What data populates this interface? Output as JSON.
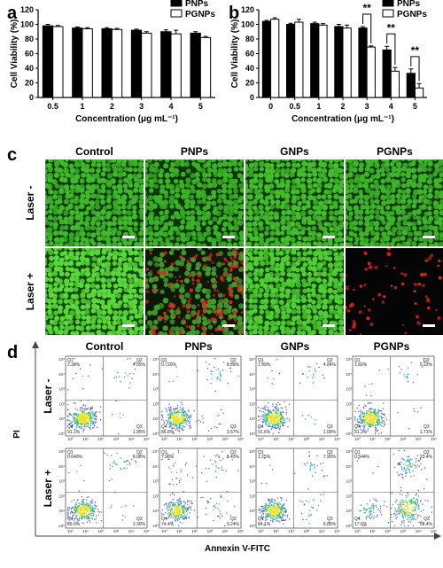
{
  "panels": {
    "a": "a",
    "b": "b",
    "c": "c",
    "d": "d"
  },
  "chart_data": [
    {
      "id": "a",
      "type": "bar",
      "categories": [
        "0.5",
        "1",
        "2",
        "3",
        "4",
        "5"
      ],
      "series": [
        {
          "name": "PNPs",
          "values": [
            98,
            95,
            94,
            92,
            90,
            88
          ],
          "errors": [
            2,
            1.5,
            1.5,
            1.5,
            2.5,
            2
          ],
          "color": "#000000"
        },
        {
          "name": "PGNPs",
          "values": [
            97,
            94,
            93,
            88,
            87,
            82
          ],
          "errors": [
            1.5,
            1.5,
            1.5,
            2,
            5,
            1.5
          ],
          "color": "#ffffff"
        }
      ],
      "xlabel": "Concentration (μg mL⁻¹)",
      "ylabel": "Cell Viability (%)",
      "ylim": [
        0,
        120
      ],
      "yticks": [
        "0",
        "20",
        "40",
        "60",
        "80",
        "100",
        "120"
      ],
      "legend": "top-right"
    },
    {
      "id": "b",
      "type": "bar",
      "categories": [
        "0",
        "0.5",
        "1",
        "2",
        "3",
        "4",
        "5"
      ],
      "series": [
        {
          "name": "PNPs",
          "values": [
            104,
            100,
            101,
            97,
            95,
            65,
            33
          ],
          "errors": [
            1.5,
            1.5,
            2,
            3,
            2,
            5,
            6
          ],
          "color": "#000000"
        },
        {
          "name": "PGNPs",
          "values": [
            107,
            103,
            99,
            95,
            69,
            36,
            13
          ],
          "errors": [
            2,
            4,
            2,
            4,
            1.5,
            5,
            6
          ],
          "color": "#ffffff"
        }
      ],
      "significance": [
        {
          "category": "3",
          "label": "**"
        },
        {
          "category": "4",
          "label": "**"
        },
        {
          "category": "5",
          "label": "**"
        }
      ],
      "xlabel": "Concentration (μg mL⁻¹)",
      "ylabel": "Cell Viability (%)",
      "ylim": [
        0,
        120
      ],
      "yticks": [
        "0",
        "20",
        "40",
        "60",
        "80",
        "100",
        "120"
      ],
      "legend": "top-right"
    },
    {
      "id": "c",
      "type": "image-grid",
      "columns": [
        "Control",
        "PNPs",
        "GNPs",
        "PGNPs"
      ],
      "rows": [
        "Laser -",
        "Laser +"
      ]
    },
    {
      "id": "d",
      "type": "scatter",
      "columns": [
        "Control",
        "PNPs",
        "GNPs",
        "PGNPs"
      ],
      "rows": [
        "Laser -",
        "Laser +"
      ],
      "xlabel": "Annexin V-FITC",
      "ylabel": "PI",
      "quadrants": [
        [
          {
            "Q1": "2.38%",
            "Q2": "4.55%",
            "Q3": "1.95%",
            "Q4": "91.1%"
          },
          {
            "Q1": "0.720%",
            "Q2": "8.89%",
            "Q3": "3.57%",
            "Q4": "86.8%"
          },
          {
            "Q1": "1.99%",
            "Q2": "4.84%",
            "Q3": "1.58%",
            "Q4": "91.6%"
          },
          {
            "Q1": "1.82%",
            "Q2": "5.22%",
            "Q3": "1.71%",
            "Q4": "91.3%"
          }
        ],
        [
          {
            "Q1": "0.640%",
            "Q2": "8.08%",
            "Q3": "2.30%",
            "Q4": "89.0%"
          },
          {
            "Q1": "7.98%",
            "Q2": "8.43%",
            "Q3": "9.24%",
            "Q4": "74.4%"
          },
          {
            "Q1": "1.25%",
            "Q2": "7.90%",
            "Q3": "6.85%",
            "Q4": "84.1%"
          },
          {
            "Q1": "0.544%",
            "Q2": "23.4%",
            "Q3": "58.4%",
            "Q4": "17.6%"
          }
        ]
      ]
    }
  ]
}
